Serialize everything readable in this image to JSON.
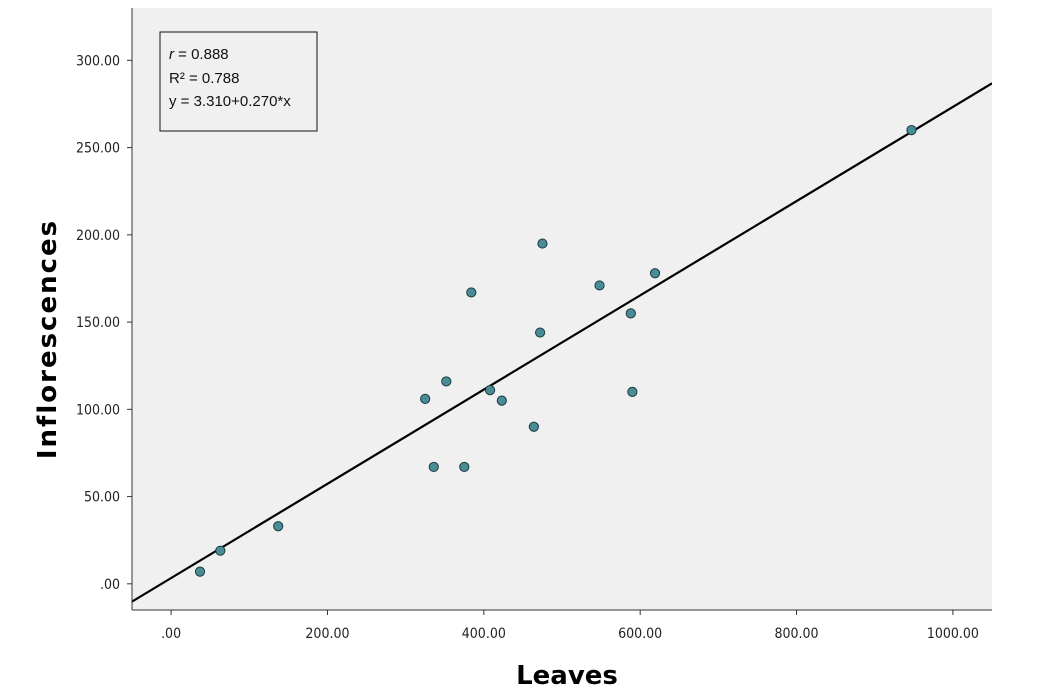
{
  "chart_data": {
    "type": "scatter",
    "title": "",
    "xlabel": "Leaves",
    "ylabel": "Inflorescences",
    "xlim": [
      -50,
      1050
    ],
    "ylim": [
      -15,
      330
    ],
    "x_ticks": [
      0,
      200,
      400,
      600,
      800,
      1000
    ],
    "x_tick_labels": [
      ".00",
      "200.00",
      "400.00",
      "600.00",
      "800.00",
      "1000.00"
    ],
    "y_ticks": [
      0,
      50,
      100,
      150,
      200,
      250,
      300
    ],
    "y_tick_labels": [
      ".00",
      "50.00",
      "100.00",
      "150.00",
      "200.00",
      "250.00",
      "300.00"
    ],
    "grid": false,
    "background_color": "#f0f0f0",
    "point_color": "#4a8c96",
    "point_edge_color": "#1a3a40",
    "line_color": "#000000",
    "points": [
      {
        "x": 37,
        "y": 7
      },
      {
        "x": 63,
        "y": 19
      },
      {
        "x": 137,
        "y": 33
      },
      {
        "x": 325,
        "y": 106
      },
      {
        "x": 336,
        "y": 67
      },
      {
        "x": 352,
        "y": 116
      },
      {
        "x": 375,
        "y": 67
      },
      {
        "x": 384,
        "y": 167
      },
      {
        "x": 408,
        "y": 111
      },
      {
        "x": 423,
        "y": 105
      },
      {
        "x": 464,
        "y": 90
      },
      {
        "x": 472,
        "y": 144
      },
      {
        "x": 475,
        "y": 195
      },
      {
        "x": 548,
        "y": 171
      },
      {
        "x": 588,
        "y": 155
      },
      {
        "x": 590,
        "y": 110
      },
      {
        "x": 619,
        "y": 178
      },
      {
        "x": 947,
        "y": 260
      }
    ],
    "fit_line": {
      "intercept": 3.31,
      "slope": 0.27
    },
    "stats": {
      "r_label": "r",
      "r_text": " = 0.888",
      "r2_text": "R² = 0.788",
      "eq_text": "y = 3.310+0.270*x"
    },
    "stats_box_position": "top-left"
  }
}
